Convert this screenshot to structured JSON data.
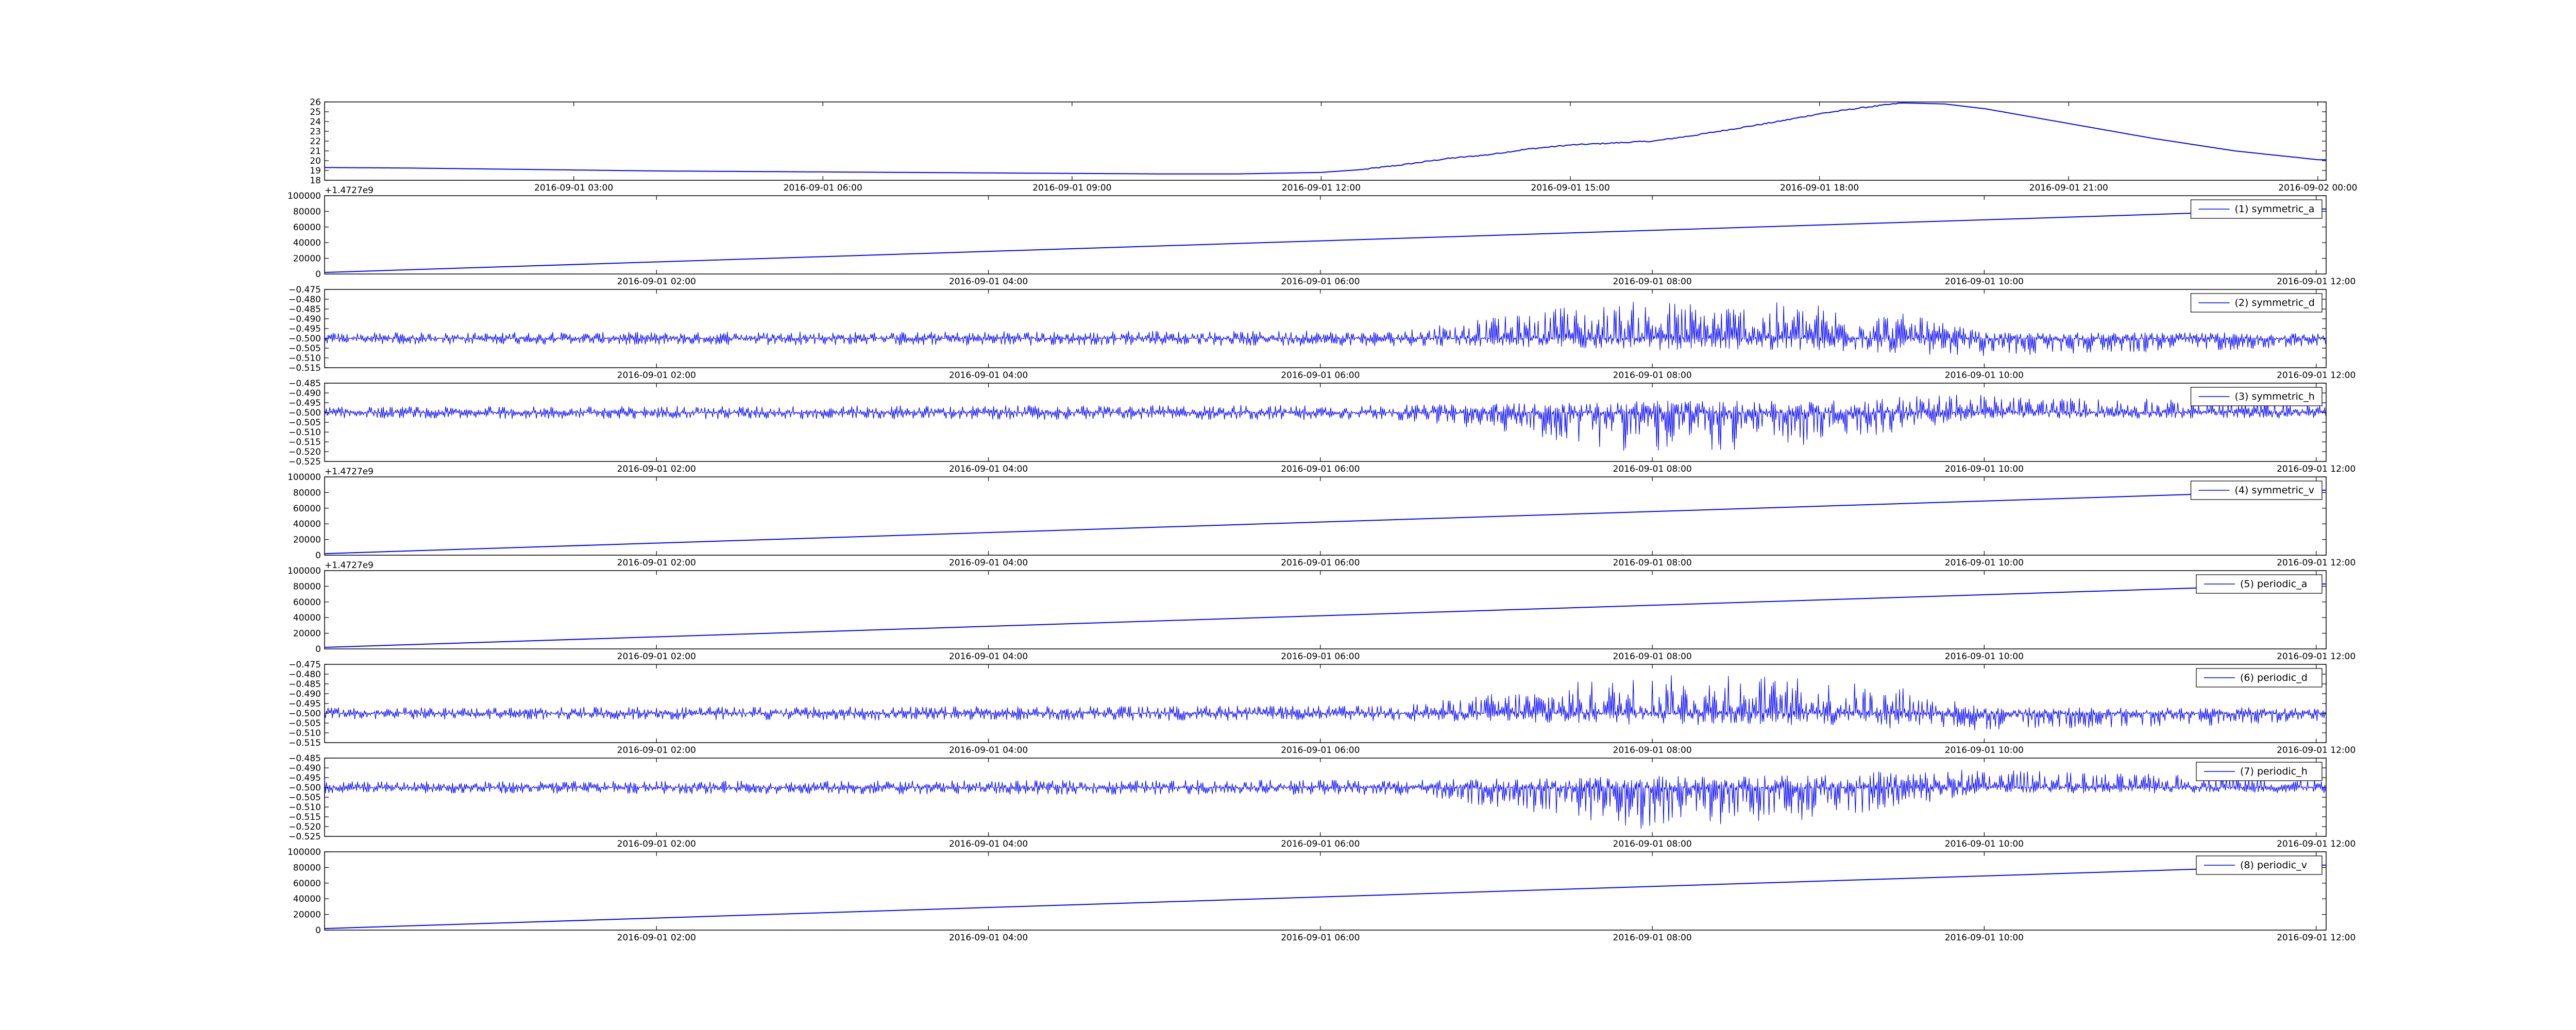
{
  "chart_data": [
    {
      "type": "line",
      "series_color": "#0000ff",
      "x_ticks": [
        "2016-09-01 03:00",
        "2016-09-01 06:00",
        "2016-09-01 09:00",
        "2016-09-01 12:00",
        "2016-09-01 15:00",
        "2016-09-01 18:00",
        "2016-09-01 21:00",
        "2016-09-02 00:00"
      ],
      "y_ticks": [
        "18",
        "19",
        "20",
        "21",
        "22",
        "23",
        "24",
        "25",
        "26"
      ],
      "ylim": [
        18,
        26
      ],
      "grid": false,
      "series": [
        {
          "x": [
            "2016-09-01 00:00",
            "2016-09-01 01:00",
            "2016-09-01 02:00",
            "2016-09-01 03:00",
            "2016-09-01 04:00",
            "2016-09-01 05:00",
            "2016-09-01 06:00",
            "2016-09-01 07:00",
            "2016-09-01 08:00",
            "2016-09-01 09:00",
            "2016-09-01 10:00",
            "2016-09-01 11:00",
            "2016-09-01 12:00",
            "2016-09-01 12:30",
            "2016-09-01 13:00",
            "2016-09-01 13:30",
            "2016-09-01 14:00",
            "2016-09-01 14:30",
            "2016-09-01 15:00",
            "2016-09-01 15:30",
            "2016-09-01 16:00",
            "2016-09-01 16:30",
            "2016-09-01 17:00",
            "2016-09-01 17:30",
            "2016-09-01 18:00",
            "2016-09-01 18:30",
            "2016-09-01 19:00",
            "2016-09-01 19:30",
            "2016-09-01 20:00",
            "2016-09-01 21:00",
            "2016-09-01 22:00",
            "2016-09-01 23:00",
            "2016-09-02 00:00",
            "2016-09-02 01:00"
          ],
          "values": [
            19.3,
            19.25,
            19.15,
            19.05,
            18.95,
            18.9,
            18.85,
            18.8,
            18.75,
            18.7,
            18.65,
            18.65,
            18.8,
            19.1,
            19.6,
            20.2,
            20.6,
            21.2,
            21.6,
            21.8,
            22.0,
            22.6,
            23.3,
            24.0,
            24.8,
            25.4,
            25.9,
            25.8,
            25.3,
            23.8,
            22.3,
            21.0,
            20.1,
            20.0
          ]
        }
      ]
    },
    {
      "type": "line",
      "series_color": "#0000ff",
      "legend": "(1) symmetric_a",
      "legend_position": "top-right",
      "x_ticks": [
        "2016-09-01 02:00",
        "2016-09-01 04:00",
        "2016-09-01 06:00",
        "2016-09-01 08:00",
        "2016-09-01 10:00",
        "2016-09-01 12:00"
      ],
      "y_ticks": [
        "0",
        "20000",
        "40000",
        "60000",
        "80000",
        "100000"
      ],
      "ylim": [
        0,
        100000
      ],
      "offset_text": "+1.4727e9",
      "series": [
        {
          "name": "(1) symmetric_a",
          "x": [
            "2016-09-01 00:00",
            "2016-09-01 12:30"
          ],
          "values": [
            2000,
            86000
          ]
        }
      ]
    },
    {
      "type": "line",
      "series_color": "#0000ff",
      "legend": "(2) symmetric_d",
      "legend_position": "top-right",
      "x_ticks": [
        "2016-09-01 02:00",
        "2016-09-01 04:00",
        "2016-09-01 06:00",
        "2016-09-01 08:00",
        "2016-09-01 10:00",
        "2016-09-01 12:00"
      ],
      "y_ticks": [
        "−0.515",
        "−0.510",
        "−0.505",
        "−0.500",
        "−0.495",
        "−0.490",
        "−0.485",
        "−0.480",
        "−0.475"
      ],
      "ylim": [
        -0.515,
        -0.475
      ],
      "series": [
        {
          "name": "(2) symmetric_d",
          "baseline": -0.5,
          "envelope": [
            {
              "x": "2016-09-01 00:00",
              "upper": -0.497,
              "lower": -0.503
            },
            {
              "x": "2016-09-01 06:30",
              "upper": -0.496,
              "lower": -0.504
            },
            {
              "x": "2016-09-01 07:30",
              "upper": -0.484,
              "lower": -0.505
            },
            {
              "x": "2016-09-01 08:00",
              "upper": -0.48,
              "lower": -0.506
            },
            {
              "x": "2016-09-01 09:00",
              "upper": -0.482,
              "lower": -0.506
            },
            {
              "x": "2016-09-01 09:30",
              "upper": -0.487,
              "lower": -0.508
            },
            {
              "x": "2016-09-01 10:00",
              "upper": -0.497,
              "lower": -0.509
            },
            {
              "x": "2016-09-01 11:30",
              "upper": -0.497,
              "lower": -0.506
            },
            {
              "x": "2016-09-01 12:30",
              "upper": -0.497,
              "lower": -0.503
            }
          ]
        }
      ]
    },
    {
      "type": "line",
      "series_color": "#0000ff",
      "legend": "(3) symmetric_h",
      "legend_position": "top-right",
      "x_ticks": [
        "2016-09-01 02:00",
        "2016-09-01 04:00",
        "2016-09-01 06:00",
        "2016-09-01 08:00",
        "2016-09-01 10:00",
        "2016-09-01 12:00"
      ],
      "y_ticks": [
        "−0.525",
        "−0.520",
        "−0.515",
        "−0.510",
        "−0.505",
        "−0.500",
        "−0.495",
        "−0.490",
        "−0.485"
      ],
      "ylim": [
        -0.525,
        -0.485
      ],
      "series": [
        {
          "name": "(3) symmetric_h",
          "baseline": -0.5,
          "envelope": [
            {
              "x": "2016-09-01 00:00",
              "upper": -0.497,
              "lower": -0.503
            },
            {
              "x": "2016-09-01 06:30",
              "upper": -0.496,
              "lower": -0.504
            },
            {
              "x": "2016-09-01 07:30",
              "upper": -0.495,
              "lower": -0.515
            },
            {
              "x": "2016-09-01 08:00",
              "upper": -0.494,
              "lower": -0.522
            },
            {
              "x": "2016-09-01 09:00",
              "upper": -0.494,
              "lower": -0.516
            },
            {
              "x": "2016-09-01 09:30",
              "upper": -0.491,
              "lower": -0.51
            },
            {
              "x": "2016-09-01 10:00",
              "upper": -0.491,
              "lower": -0.503
            },
            {
              "x": "2016-09-01 11:30",
              "upper": -0.494,
              "lower": -0.503
            },
            {
              "x": "2016-09-01 12:30",
              "upper": -0.497,
              "lower": -0.503
            }
          ]
        }
      ]
    },
    {
      "type": "line",
      "series_color": "#0000ff",
      "legend": "(4) symmetric_v",
      "legend_position": "top-right",
      "x_ticks": [
        "2016-09-01 02:00",
        "2016-09-01 04:00",
        "2016-09-01 06:00",
        "2016-09-01 08:00",
        "2016-09-01 10:00",
        "2016-09-01 12:00"
      ],
      "y_ticks": [
        "0",
        "20000",
        "40000",
        "60000",
        "80000",
        "100000"
      ],
      "ylim": [
        0,
        100000
      ],
      "offset_text": "+1.4727e9",
      "series": [
        {
          "name": "(4) symmetric_v",
          "x": [
            "2016-09-01 00:00",
            "2016-09-01 12:30"
          ],
          "values": [
            2000,
            86000
          ]
        }
      ]
    },
    {
      "type": "line",
      "series_color": "#0000ff",
      "legend": "(5) periodic_a",
      "legend_position": "top-right",
      "x_ticks": [
        "2016-09-01 02:00",
        "2016-09-01 04:00",
        "2016-09-01 06:00",
        "2016-09-01 08:00",
        "2016-09-01 10:00",
        "2016-09-01 12:00"
      ],
      "y_ticks": [
        "0",
        "20000",
        "40000",
        "60000",
        "80000",
        "100000"
      ],
      "ylim": [
        0,
        100000
      ],
      "offset_text": "+1.4727e9",
      "series": [
        {
          "name": "(5) periodic_a",
          "x": [
            "2016-09-01 00:00",
            "2016-09-01 12:30"
          ],
          "values": [
            2000,
            86000
          ]
        }
      ]
    },
    {
      "type": "line",
      "series_color": "#0000ff",
      "legend": "(6) periodic_d",
      "legend_position": "top-right",
      "x_ticks": [
        "2016-09-01 02:00",
        "2016-09-01 04:00",
        "2016-09-01 06:00",
        "2016-09-01 08:00",
        "2016-09-01 10:00",
        "2016-09-01 12:00"
      ],
      "y_ticks": [
        "−0.515",
        "−0.510",
        "−0.505",
        "−0.500",
        "−0.495",
        "−0.490",
        "−0.485",
        "−0.480",
        "−0.475"
      ],
      "ylim": [
        -0.515,
        -0.475
      ],
      "series": [
        {
          "name": "(6) periodic_d",
          "baseline": -0.5,
          "envelope": [
            {
              "x": "2016-09-01 00:00",
              "upper": -0.497,
              "lower": -0.503
            },
            {
              "x": "2016-09-01 06:30",
              "upper": -0.496,
              "lower": -0.504
            },
            {
              "x": "2016-09-01 07:30",
              "upper": -0.484,
              "lower": -0.505
            },
            {
              "x": "2016-09-01 08:00",
              "upper": -0.48,
              "lower": -0.506
            },
            {
              "x": "2016-09-01 09:00",
              "upper": -0.482,
              "lower": -0.506
            },
            {
              "x": "2016-09-01 09:30",
              "upper": -0.487,
              "lower": -0.508
            },
            {
              "x": "2016-09-01 10:00",
              "upper": -0.497,
              "lower": -0.509
            },
            {
              "x": "2016-09-01 11:30",
              "upper": -0.497,
              "lower": -0.506
            },
            {
              "x": "2016-09-01 12:30",
              "upper": -0.497,
              "lower": -0.503
            }
          ]
        }
      ]
    },
    {
      "type": "line",
      "series_color": "#0000ff",
      "legend": "(7) periodic_h",
      "legend_position": "top-right",
      "x_ticks": [
        "2016-09-01 02:00",
        "2016-09-01 04:00",
        "2016-09-01 06:00",
        "2016-09-01 08:00",
        "2016-09-01 10:00",
        "2016-09-01 12:00"
      ],
      "y_ticks": [
        "−0.525",
        "−0.520",
        "−0.515",
        "−0.510",
        "−0.505",
        "−0.500",
        "−0.495",
        "−0.490",
        "−0.485"
      ],
      "ylim": [
        -0.525,
        -0.485
      ],
      "series": [
        {
          "name": "(7) periodic_h",
          "baseline": -0.5,
          "envelope": [
            {
              "x": "2016-09-01 00:00",
              "upper": -0.497,
              "lower": -0.503
            },
            {
              "x": "2016-09-01 06:30",
              "upper": -0.496,
              "lower": -0.504
            },
            {
              "x": "2016-09-01 07:30",
              "upper": -0.495,
              "lower": -0.515
            },
            {
              "x": "2016-09-01 08:00",
              "upper": -0.494,
              "lower": -0.522
            },
            {
              "x": "2016-09-01 09:00",
              "upper": -0.494,
              "lower": -0.516
            },
            {
              "x": "2016-09-01 09:30",
              "upper": -0.491,
              "lower": -0.51
            },
            {
              "x": "2016-09-01 10:00",
              "upper": -0.491,
              "lower": -0.503
            },
            {
              "x": "2016-09-01 11:30",
              "upper": -0.494,
              "lower": -0.503
            },
            {
              "x": "2016-09-01 12:30",
              "upper": -0.497,
              "lower": -0.503
            }
          ]
        }
      ]
    },
    {
      "type": "line",
      "series_color": "#0000ff",
      "legend": "(8) periodic_v",
      "legend_position": "top-right",
      "x_ticks": [
        "2016-09-01 02:00",
        "2016-09-01 04:00",
        "2016-09-01 06:00",
        "2016-09-01 08:00",
        "2016-09-01 10:00",
        "2016-09-01 12:00"
      ],
      "y_ticks": [
        "0",
        "20000",
        "40000",
        "60000",
        "80000",
        "100000"
      ],
      "ylim": [
        0,
        100000
      ],
      "series": [
        {
          "name": "(8) periodic_v",
          "x": [
            "2016-09-01 00:00",
            "2016-09-01 12:30"
          ],
          "values": [
            2000,
            86000
          ]
        }
      ]
    }
  ]
}
